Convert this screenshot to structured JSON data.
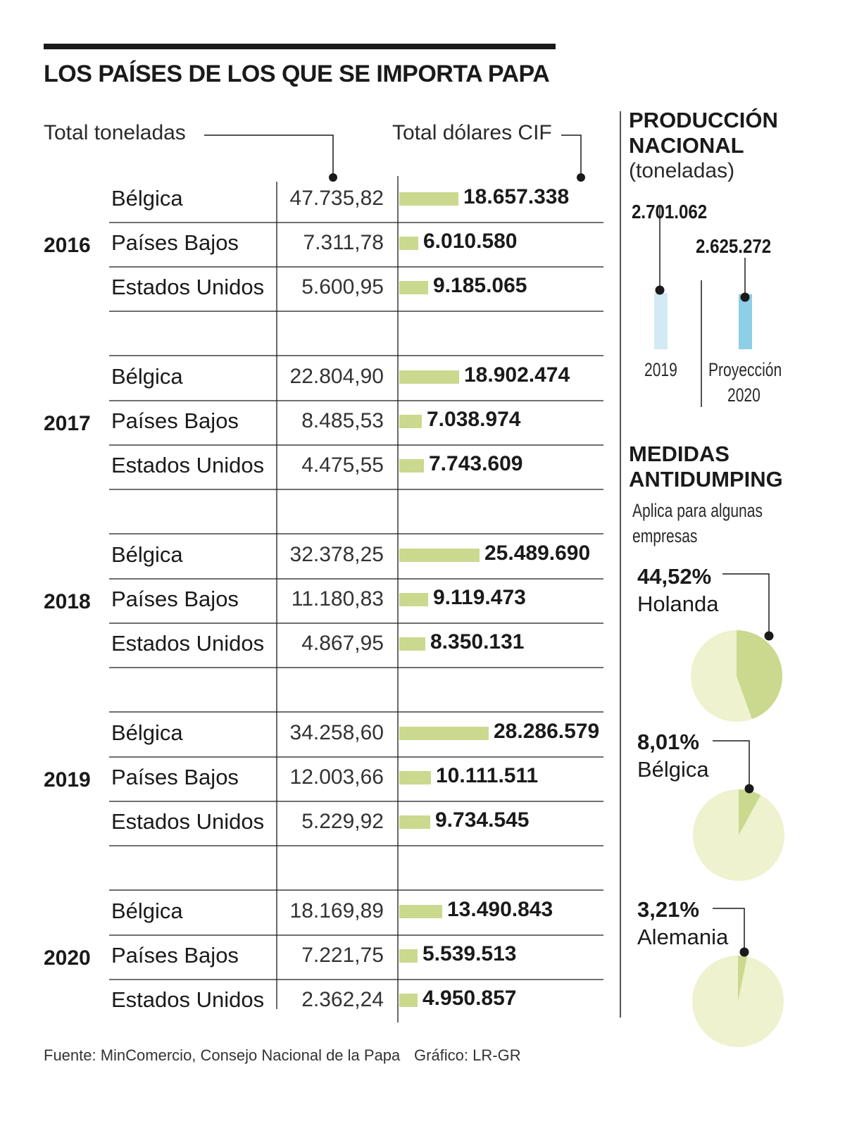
{
  "title": "LOS PAÍSES DE LOS QUE SE IMPORTA PAPA",
  "header_tons": "Total toneladas",
  "header_usd": "Total dólares CIF",
  "chart_data": {
    "type": "table",
    "years": [
      {
        "year": "2016",
        "rows": [
          {
            "country": "Bélgica",
            "tons": "47.735,82",
            "usd": 18657338,
            "usd_label": "18.657.338"
          },
          {
            "country": "Países Bajos",
            "tons": "7.311,78",
            "usd": 6010580,
            "usd_label": "6.010.580"
          },
          {
            "country": "Estados Unidos",
            "tons": "5.600,95",
            "usd": 9185065,
            "usd_label": "9.185.065"
          }
        ]
      },
      {
        "year": "2017",
        "rows": [
          {
            "country": "Bélgica",
            "tons": "22.804,90",
            "usd": 18902474,
            "usd_label": "18.902.474"
          },
          {
            "country": "Países Bajos",
            "tons": "8.485,53",
            "usd": 7038974,
            "usd_label": "7.038.974"
          },
          {
            "country": "Estados Unidos",
            "tons": "4.475,55",
            "usd": 7743609,
            "usd_label": "7.743.609"
          }
        ]
      },
      {
        "year": "2018",
        "rows": [
          {
            "country": "Bélgica",
            "tons": "32.378,25",
            "usd": 25489690,
            "usd_label": "25.489.690"
          },
          {
            "country": "Países Bajos",
            "tons": "11.180,83",
            "usd": 9119473,
            "usd_label": "9.119.473"
          },
          {
            "country": "Estados Unidos",
            "tons": "4.867,95",
            "usd": 8350131,
            "usd_label": "8.350.131"
          }
        ]
      },
      {
        "year": "2019",
        "rows": [
          {
            "country": "Bélgica",
            "tons": "34.258,60",
            "usd": 28286579,
            "usd_label": "28.286.579"
          },
          {
            "country": "Países Bajos",
            "tons": "12.003,66",
            "usd": 10111511,
            "usd_label": "10.111.511"
          },
          {
            "country": "Estados Unidos",
            "tons": "5.229,92",
            "usd": 9734545,
            "usd_label": "9.734.545"
          }
        ]
      },
      {
        "year": "2020",
        "rows": [
          {
            "country": "Bélgica",
            "tons": "18.169,89",
            "usd": 13490843,
            "usd_label": "13.490.843"
          },
          {
            "country": "Países Bajos",
            "tons": "7.221,75",
            "usd": 5539513,
            "usd_label": "5.539.513"
          },
          {
            "country": "Estados Unidos",
            "tons": "2.362,24",
            "usd": 4950857,
            "usd_label": "4.950.857"
          }
        ]
      }
    ],
    "bar_color": "#cad98e"
  },
  "production": {
    "title_line1": "PRODUCCIÓN",
    "title_line2": "NACIONAL",
    "unit": "(toneladas)",
    "items": [
      {
        "label_line1": "2019",
        "label_line2": "",
        "value": 2701062,
        "value_label": "2.701.062",
        "color": "#d3eaf4"
      },
      {
        "label_line1": "Proyección",
        "label_line2": "2020",
        "value": 2625272,
        "value_label": "2.625.272",
        "color": "#8dcfe6"
      }
    ]
  },
  "antidumping": {
    "title_line1": "MEDIDAS",
    "title_line2": "ANTIDUMPING",
    "subtitle_line1": "Aplica para algunas",
    "subtitle_line2": "empresas",
    "items": [
      {
        "percent": 44.52,
        "percent_label": "44,52%",
        "country": "Holanda"
      },
      {
        "percent": 8.01,
        "percent_label": "8,01%",
        "country": "Bélgica"
      },
      {
        "percent": 3.21,
        "percent_label": "3,21%",
        "country": "Alemania"
      }
    ],
    "pie_bg": "#eef2cf",
    "pie_fg": "#cad98e"
  },
  "source": "Fuente: MinComercio, Consejo Nacional de la Papa",
  "credit": "Gráfico: LR-GR"
}
